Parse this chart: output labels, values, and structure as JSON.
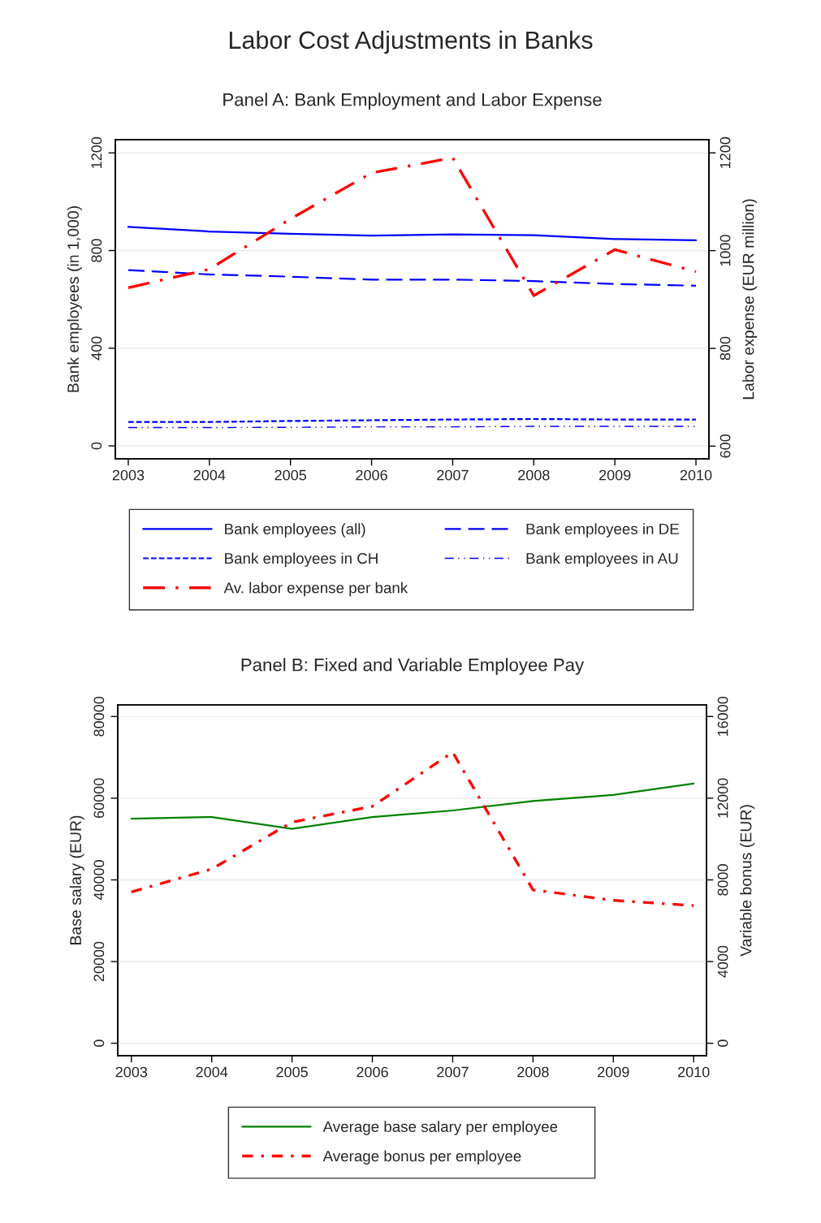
{
  "chart_data": [
    {
      "type": "line",
      "title": "Labor Cost Adjustments in Banks",
      "subtitle": "Panel A: Bank Employment and Labor Expense",
      "ylabel": "Bank employees (in 1,000)",
      "y2label": "Labor expense (EUR million)",
      "x": [
        2003,
        2004,
        2005,
        2006,
        2007,
        2008,
        2009,
        2010
      ],
      "xlim": [
        2002.84,
        2010.16
      ],
      "xticks": [
        2003,
        2004,
        2005,
        2006,
        2007,
        2008,
        2009,
        2010
      ],
      "ylim": [
        -53,
        1254
      ],
      "yticks": [
        0,
        400,
        800,
        1200
      ],
      "y2lim": [
        574,
        1227
      ],
      "y2ticks": [
        600,
        800,
        1000,
        1200
      ],
      "grid": "y",
      "legend": "bottom",
      "series": [
        {
          "name": "Bank employees (all)",
          "color": "#0000ff",
          "line_style": "solid",
          "values": [
            897,
            878,
            869,
            861,
            866,
            863,
            847,
            842
          ]
        },
        {
          "name": "Bank employees in DE",
          "color": "#0000ff",
          "line_style": "longdash",
          "values": [
            720,
            702,
            693,
            681,
            681,
            675,
            663,
            656
          ]
        },
        {
          "name": "Bank employees in CH",
          "color": "#0000ff",
          "line_style": "dashed",
          "values": [
            98,
            98,
            102,
            105,
            108,
            110,
            108,
            108
          ]
        },
        {
          "name": "Bank employees in AU",
          "color": "#0000ff",
          "line_style": "dashdotdot",
          "values": [
            75,
            75,
            76,
            78,
            78,
            80,
            80,
            80
          ]
        },
        {
          "name": "Av. labor expense per bank",
          "color": "#ff0000",
          "line_style": "longdashdot",
          "axis": "y2",
          "values": [
            924,
            962,
            1065,
            1159,
            1190,
            908,
            1002,
            957
          ]
        }
      ]
    },
    {
      "type": "line",
      "subtitle": "Panel B: Fixed and Variable Employee Pay",
      "ylabel": "Base salary (EUR)",
      "y2label": "Variable bonus (EUR)",
      "x": [
        2003,
        2004,
        2005,
        2006,
        2007,
        2008,
        2009,
        2010
      ],
      "xlim": [
        2002.83,
        2010.16
      ],
      "xticks": [
        2003,
        2004,
        2005,
        2006,
        2007,
        2008,
        2009,
        2010
      ],
      "ylim": [
        -3053,
        82850
      ],
      "yticks": [
        0,
        20000,
        40000,
        60000,
        80000
      ],
      "y2lim": [
        -611,
        16570
      ],
      "y2ticks": [
        0,
        4000,
        8000,
        12000,
        16000
      ],
      "grid": "y",
      "legend": "bottom",
      "series": [
        {
          "name": "Average base salary per employee",
          "color": "#008000",
          "line_style": "solid",
          "values": [
            55000,
            55400,
            52500,
            55400,
            57000,
            59300,
            60800,
            63600
          ]
        },
        {
          "name": "Average bonus per employee",
          "color": "#ff0000",
          "line_style": "dashdot",
          "axis": "y2",
          "values": [
            7410,
            8530,
            10830,
            11600,
            14250,
            7510,
            7000,
            6740
          ]
        }
      ]
    }
  ]
}
